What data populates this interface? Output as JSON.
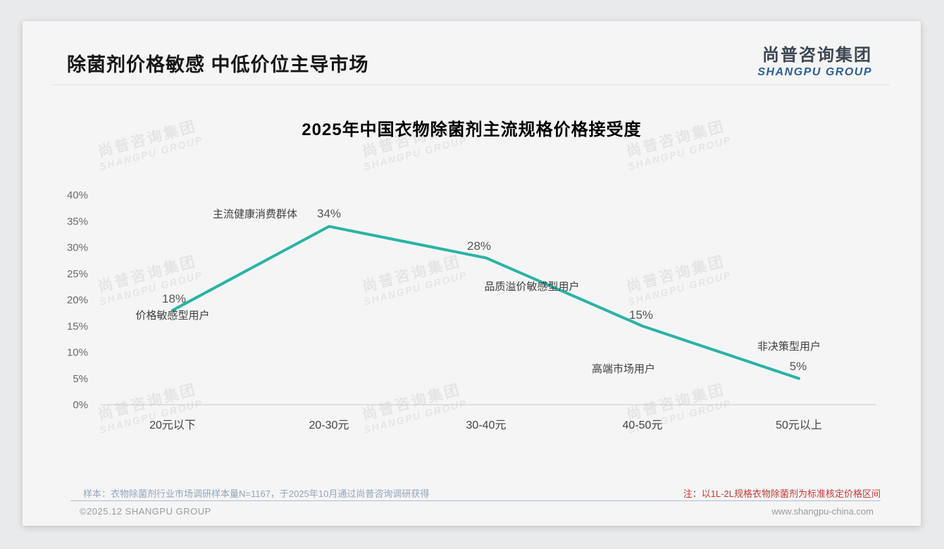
{
  "page": {
    "slide_title": "除菌剂价格敏感 中低价位主导市场",
    "logo": {
      "cn": "尚普咨询集团",
      "en": "SHANGPU GROUP"
    },
    "watermark": {
      "line1": "尚普咨询集团",
      "line2": "SHANGPU GROUP"
    },
    "footer": {
      "sample_note": "样本：衣物除菌剂行业市场调研样本量N=1167，于2025年10月通过尚普咨询调研获得",
      "price_note": "注：以1L-2L规格衣物除菌剂为标准核定价格区间",
      "copyright": "©2025.12 SHANGPU GROUP",
      "website": "www.shangpu-china.com"
    },
    "colors": {
      "line": "#2bb3a3",
      "note_red": "#c23a35",
      "logo_blue": "#2e5f96",
      "footer_divider": "#aebccb"
    }
  },
  "chart_data": {
    "type": "line",
    "title": "2025年中国衣物除菌剂主流规格价格接受度",
    "categories": [
      "20元以下",
      "20-30元",
      "30-40元",
      "40-50元",
      "50元以上"
    ],
    "values": [
      18,
      34,
      28,
      15,
      5
    ],
    "value_labels": [
      "18%",
      "34%",
      "28%",
      "15%",
      "5%"
    ],
    "point_annotations": [
      "价格敏感型用户",
      "主流健康消费群体",
      "品质溢价敏感型用户",
      "高端市场用户",
      "非决策型用户"
    ],
    "xlabel": "",
    "ylabel": "",
    "ylim": [
      0,
      40
    ],
    "ytick_step": 5,
    "ytick_labels": [
      "0%",
      "5%",
      "10%",
      "15%",
      "20%",
      "25%",
      "30%",
      "35%",
      "40%"
    ],
    "grid": false,
    "legend": "none",
    "line_color": "#2bb3a3"
  }
}
